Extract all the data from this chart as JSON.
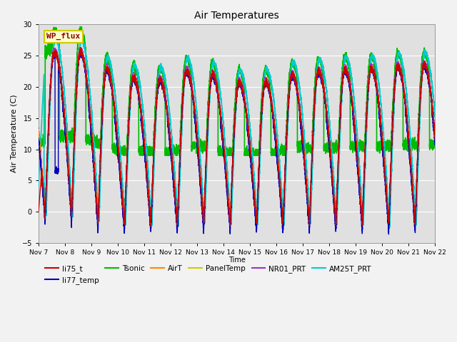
{
  "title": "Air Temperatures",
  "xlabel": "Time",
  "ylabel": "Air Temperature (C)",
  "ylim": [
    -5,
    30
  ],
  "xlim": [
    0,
    360
  ],
  "fig_bg_color": "#f2f2f2",
  "plot_bg_color": "#e0e0e0",
  "x_tick_labels": [
    "Nov 7",
    "Nov 8",
    "Nov 9",
    "Nov 10",
    "Nov 11",
    "Nov 12",
    "Nov 13",
    "Nov 14",
    "Nov 15",
    "Nov 16",
    "Nov 17",
    "Nov 18",
    "Nov 19",
    "Nov 20",
    "Nov 21",
    "Nov 22"
  ],
  "series": {
    "li75_t": {
      "color": "#cc0000",
      "lw": 1.0
    },
    "li77_temp": {
      "color": "#0000bb",
      "lw": 1.0
    },
    "Tsonic": {
      "color": "#00bb00",
      "lw": 1.2
    },
    "AirT": {
      "color": "#ff8800",
      "lw": 1.0
    },
    "PanelTemp": {
      "color": "#cccc00",
      "lw": 1.0
    },
    "NR01_PRT": {
      "color": "#9933cc",
      "lw": 1.0
    },
    "AM25T_PRT": {
      "color": "#00cccc",
      "lw": 1.2
    }
  },
  "wp_flux_box": {
    "text": "WP_flux",
    "text_color": "#8b0000",
    "bg_color": "#ffffcc",
    "edge_color": "#cccc00",
    "fontsize": 8
  },
  "legend_order": [
    "li75_t",
    "li77_temp",
    "Tsonic",
    "AirT",
    "PanelTemp",
    "NR01_PRT",
    "AM25T_PRT"
  ]
}
